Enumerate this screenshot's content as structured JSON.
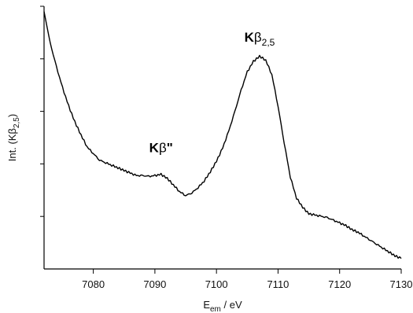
{
  "chart_data": {
    "type": "line",
    "title": "",
    "xlabel": {
      "main": "E",
      "sub": "em",
      "unit": " / eV"
    },
    "ylabel": {
      "main": "Int. (K",
      "greek": "β",
      "sub": "2,5",
      "close": ")"
    },
    "xlim": [
      7072,
      7130
    ],
    "ylim": [
      0,
      1
    ],
    "x_ticks": [
      7080,
      7090,
      7100,
      7110,
      7120,
      7130
    ],
    "y_ticks": [
      0.2,
      0.4,
      0.6,
      0.8,
      1.0
    ],
    "y_tick_labels_shown": false,
    "grid": false,
    "legend": "none",
    "annotations": [
      {
        "main": "K",
        "greek": "β",
        "suffix": "\"",
        "sub": "",
        "x": 7091,
        "y": 0.445
      },
      {
        "main": "K",
        "greek": "β",
        "suffix": "",
        "sub": "2,5",
        "x": 7107,
        "y": 0.865
      }
    ],
    "series": [
      {
        "color": "#000000",
        "x": [
          7072,
          7073,
          7074,
          7075,
          7076,
          7077,
          7078,
          7079,
          7080,
          7081,
          7082,
          7083,
          7084,
          7085,
          7086,
          7087,
          7088,
          7089,
          7090,
          7091,
          7092,
          7093,
          7094,
          7095,
          7096,
          7097,
          7098,
          7099,
          7100,
          7101,
          7102,
          7103,
          7104,
          7105,
          7106,
          7107,
          7108,
          7109,
          7110,
          7111,
          7112,
          7113,
          7114,
          7115,
          7116,
          7117,
          7118,
          7119,
          7120,
          7121,
          7122,
          7123,
          7124,
          7125,
          7126,
          7127,
          7128,
          7129,
          7130
        ],
        "y": [
          0.98,
          0.86,
          0.77,
          0.69,
          0.62,
          0.56,
          0.51,
          0.465,
          0.44,
          0.415,
          0.405,
          0.395,
          0.385,
          0.375,
          0.365,
          0.355,
          0.355,
          0.352,
          0.355,
          0.36,
          0.345,
          0.32,
          0.295,
          0.28,
          0.29,
          0.31,
          0.335,
          0.37,
          0.41,
          0.46,
          0.525,
          0.6,
          0.68,
          0.75,
          0.79,
          0.81,
          0.795,
          0.74,
          0.62,
          0.48,
          0.35,
          0.27,
          0.235,
          0.21,
          0.205,
          0.2,
          0.195,
          0.185,
          0.175,
          0.165,
          0.15,
          0.14,
          0.125,
          0.11,
          0.095,
          0.08,
          0.065,
          0.05,
          0.04
        ]
      }
    ]
  }
}
